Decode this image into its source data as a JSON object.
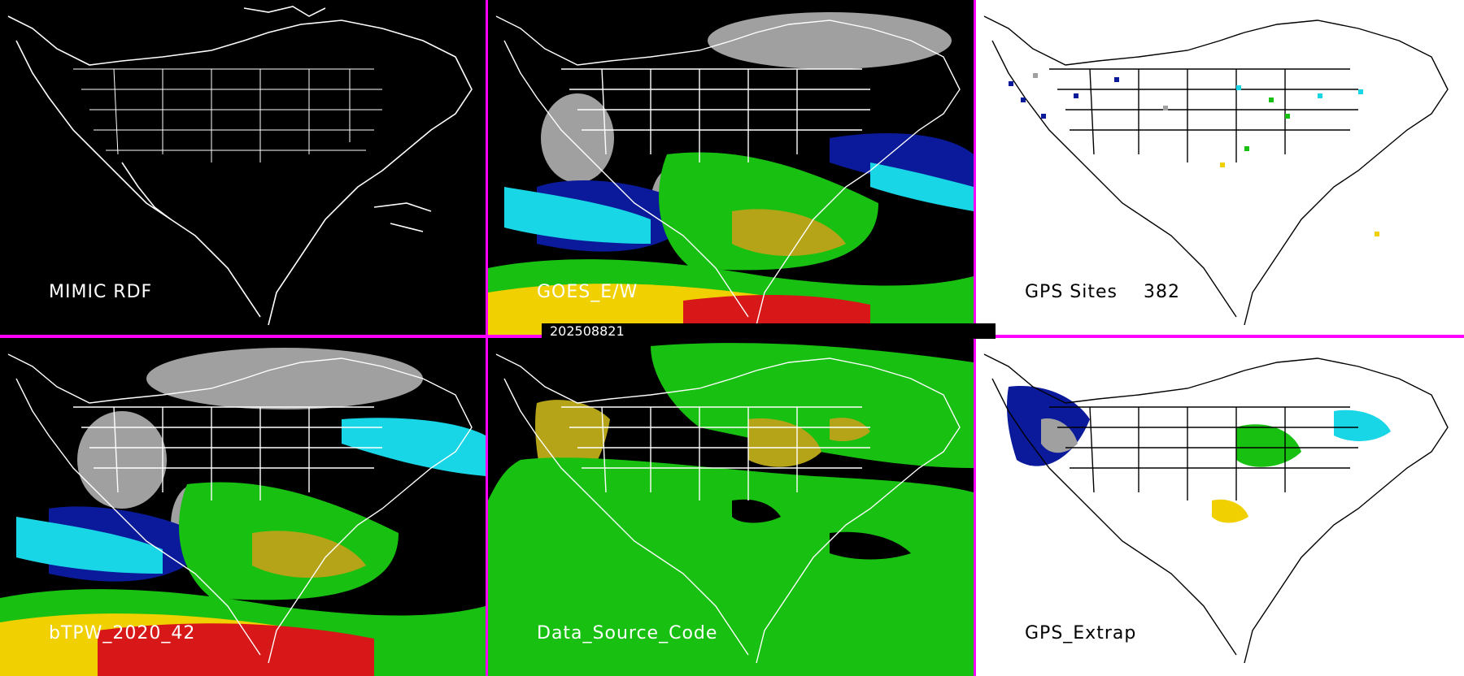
{
  "timestamp": "202508821",
  "panels": [
    {
      "id": "mimic-rdf",
      "label": "MIMIC RDF",
      "theme": "dark"
    },
    {
      "id": "goes-ew",
      "label": "GOES_E/W",
      "theme": "dark"
    },
    {
      "id": "gps-sites",
      "label": "GPS Sites    382",
      "theme": "light"
    },
    {
      "id": "btpw",
      "label": "bTPW_2020_42",
      "theme": "dark"
    },
    {
      "id": "data-source-code",
      "label": "Data_Source_Code",
      "theme": "dark"
    },
    {
      "id": "gps-extrap",
      "label": "GPS_Extrap",
      "theme": "light"
    }
  ],
  "colors": {
    "divider": "#ff00ff",
    "land_outline_dark": "#ffffff",
    "land_outline_light": "#000000",
    "tpw_gray": "#a0a0a0",
    "tpw_blue": "#0a1a9a",
    "tpw_cyan": "#19d6e6",
    "tpw_green": "#18c012",
    "tpw_olive": "#b6a418",
    "tpw_yellow": "#f0d000",
    "tpw_red": "#d81818"
  }
}
